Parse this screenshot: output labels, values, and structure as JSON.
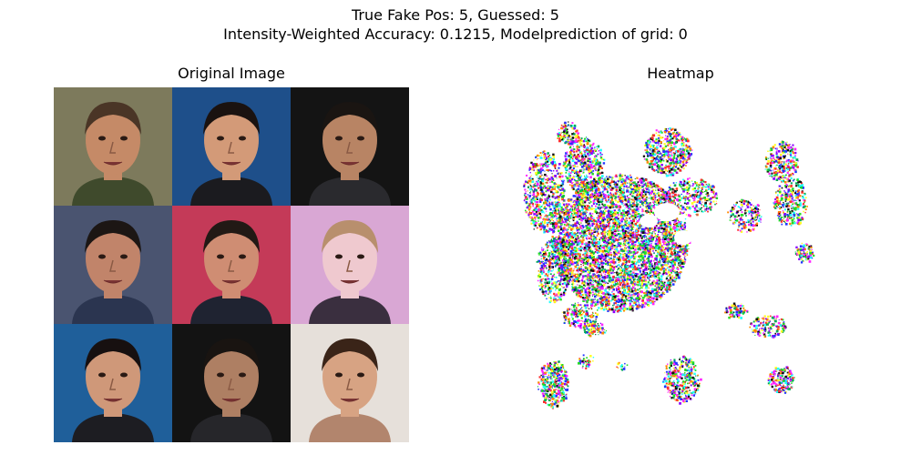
{
  "figure": {
    "title_line_1": "True Fake Pos: 5, Guessed: 5",
    "title_line_2": "Intensity-Weighted Accuracy: 0.1215, Modelprediction of grid: 0"
  },
  "panels": {
    "left_title": "Original Image",
    "right_title": "Heatmap"
  },
  "tiles": [
    {
      "bg": "#7d7a5c",
      "skin": "#c58a67",
      "hair": "#4a3526",
      "shirt": "#3f4a2c"
    },
    {
      "bg": "#1e4f8a",
      "skin": "#d39a78",
      "hair": "#1a1210",
      "shirt": "#1b1b1f"
    },
    {
      "bg": "#141414",
      "skin": "#b88464",
      "hair": "#1a1512",
      "shirt": "#2a2a2e"
    },
    {
      "bg": "#4a5470",
      "skin": "#c1846a",
      "hair": "#1c1614",
      "shirt": "#2b3550"
    },
    {
      "bg": "#c43a58",
      "skin": "#cf8d73",
      "hair": "#221915",
      "shirt": "#1f2331"
    },
    {
      "bg": "#d9a7d4",
      "skin": "#efc9cf",
      "hair": "#b88f6d",
      "shirt": "#3a2f3f"
    },
    {
      "bg": "#1f5f9a",
      "skin": "#cf9879",
      "hair": "#171010",
      "shirt": "#1d1d22"
    },
    {
      "bg": "#131313",
      "skin": "#ae7f63",
      "hair": "#191411",
      "shirt": "#26262a"
    },
    {
      "bg": "#e6e0da",
      "skin": "#d7a383",
      "hair": "#3a2418",
      "shirt": "#b2856d"
    }
  ]
}
